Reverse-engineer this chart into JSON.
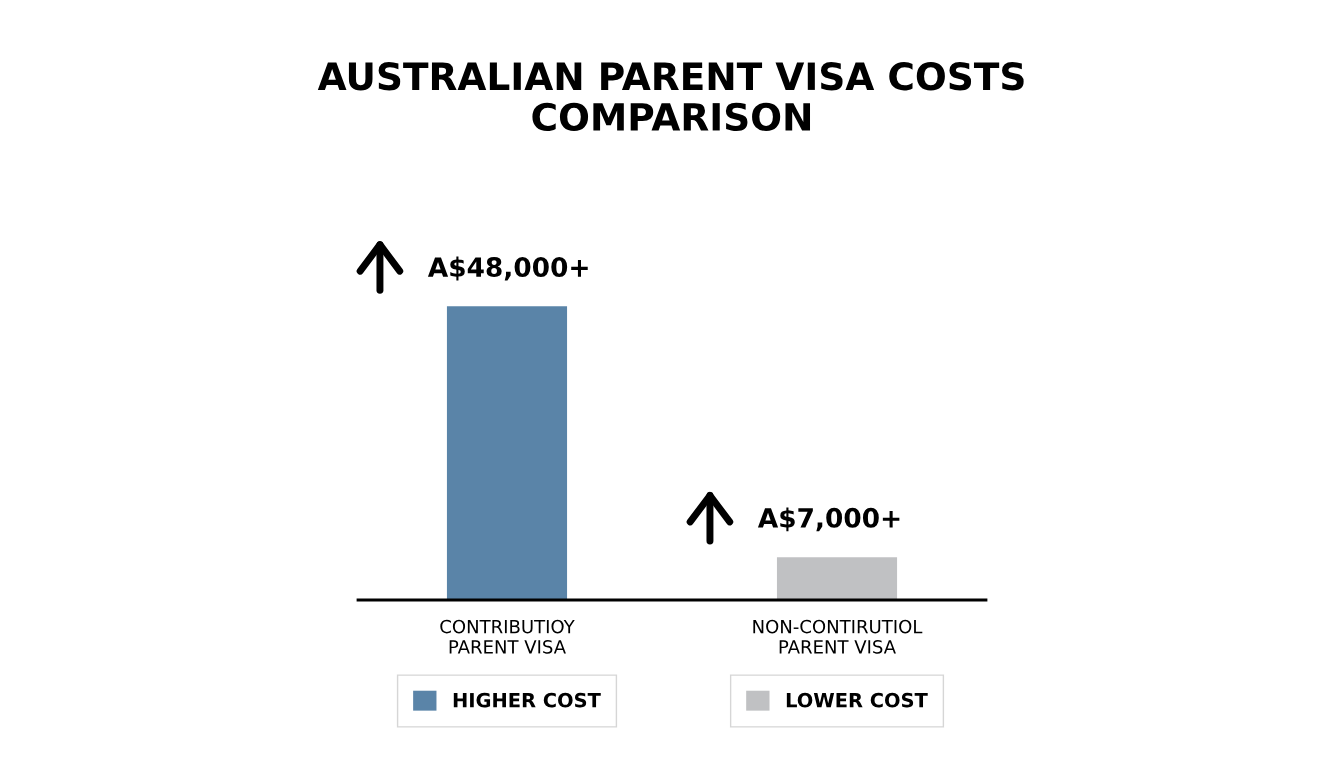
{
  "chart_data": {
    "type": "bar",
    "title": "AUSTRALIAN PARENT VISA COSTS\nCOMPARISON",
    "categories": [
      "CONTRIBUTIOY\nPARENT VISA",
      "NON-CONTIRUTIOL\nPARENT VISA"
    ],
    "series": [
      {
        "name": "HIGHER COST",
        "color": "#5a84a8",
        "values": [
          48000,
          null
        ],
        "value_labels": [
          "A$48,000+",
          null
        ]
      },
      {
        "name": "LOWER COST",
        "color": "#c0c1c3",
        "values": [
          null,
          7000
        ],
        "value_labels": [
          null,
          "A$7,000+"
        ]
      }
    ],
    "legend": "bottom",
    "grid": false
  }
}
